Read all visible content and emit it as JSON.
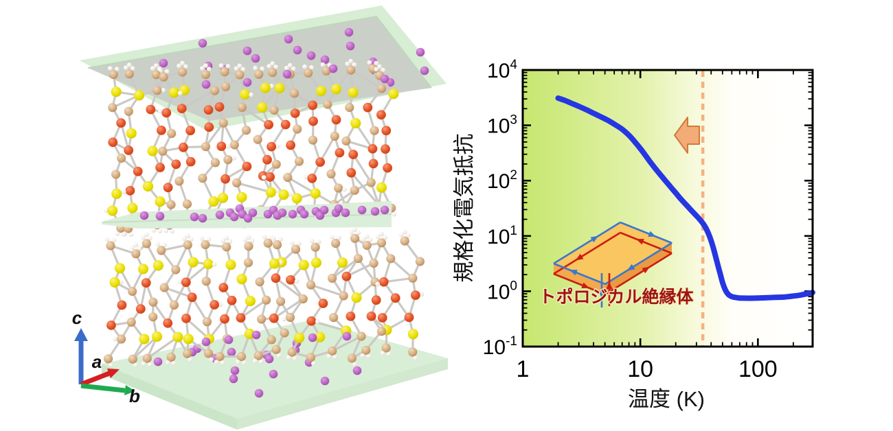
{
  "left_panel": {
    "axes_triad": {
      "a_label": "a",
      "b_label": "b",
      "c_label": "c",
      "a_color": "#d42020",
      "b_color": "#1faa50",
      "c_color": "#3b6cc9"
    },
    "slab_color": "#d7edd4",
    "slab_underside_color": "#cacfc8",
    "atom_palette": {
      "tan": "#d3ab80",
      "red": "#e44f24",
      "yellow": "#e9df00",
      "white": "#f0eae5",
      "purple": "#bb64c4",
      "bond": "#cbc9c5"
    }
  },
  "chart_data": {
    "type": "line",
    "title": "",
    "xlabel": "温度 (K)",
    "ylabel": "規格化電気抵抗",
    "x_scale": "log",
    "y_scale": "log",
    "xlim": [
      1,
      292
    ],
    "ylim": [
      0.1,
      10000
    ],
    "x_tick_labels": [
      "1",
      "10",
      "100"
    ],
    "x_major_ticks": [
      1,
      10,
      100
    ],
    "y_major_tick_exponents": [
      4,
      3,
      2,
      1,
      0,
      -1
    ],
    "grid": false,
    "legend_position": "none",
    "series": [
      {
        "name": "normalized-electrical-resistance",
        "color": "#2636e2",
        "x": [
          2,
          2.3,
          2.6,
          3,
          3.5,
          4,
          4.6,
          5.3,
          6,
          7,
          8,
          9,
          10,
          11,
          12,
          13,
          14,
          15,
          16,
          18,
          20,
          22,
          25,
          28,
          31,
          34,
          36,
          38,
          40,
          42,
          44,
          46,
          48,
          50,
          53,
          56,
          60,
          65,
          70,
          80,
          90,
          100,
          120,
          140,
          170,
          200,
          230,
          260,
          292
        ],
        "y": [
          3100,
          2800,
          2500,
          2200,
          1900,
          1650,
          1430,
          1230,
          1050,
          850,
          660,
          500,
          380,
          290,
          225,
          180,
          148,
          124,
          105,
          78,
          60,
          47,
          35,
          27,
          21.5,
          17,
          14,
          11,
          8.2,
          5.8,
          4.0,
          2.8,
          2.0,
          1.45,
          1.05,
          0.88,
          0.8,
          0.77,
          0.755,
          0.75,
          0.75,
          0.755,
          0.765,
          0.775,
          0.79,
          0.82,
          0.855,
          0.9,
          0.95
        ]
      }
    ],
    "dashed_line": {
      "x": 34,
      "color": "#f6b180"
    },
    "arrow_annotation": {
      "direction": "left",
      "fill": "#f3ab77",
      "stroke": "#cf7a3e"
    },
    "inset": {
      "label": "トポロジカル絶縁体",
      "label_color": "#9e1410",
      "slab_top": "#f9c660",
      "slab_front": "#f3a94e",
      "slab_side": "#ea9a41",
      "edge_current_red": "#cc1d10",
      "edge_current_blue": "#3a78cc"
    },
    "background_gradient": [
      "#c6e76f",
      "#ffffff"
    ]
  }
}
